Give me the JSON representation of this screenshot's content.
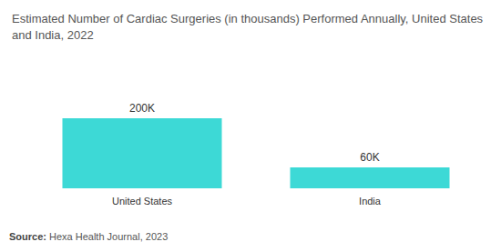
{
  "chart_data": {
    "type": "bar",
    "title": "Estimated Number of Cardiac Surgeries (in thousands) Performed Annually, United States and India, 2022",
    "categories": [
      "United States",
      "India"
    ],
    "values": [
      200,
      60
    ],
    "value_labels": [
      "200K",
      "60K"
    ],
    "color": "#3dd9d6",
    "ylim": [
      0,
      200
    ],
    "grid": false,
    "data_labels": true,
    "tick_labels": "x",
    "source": "Source: Hexa Health Journal, 2023"
  }
}
